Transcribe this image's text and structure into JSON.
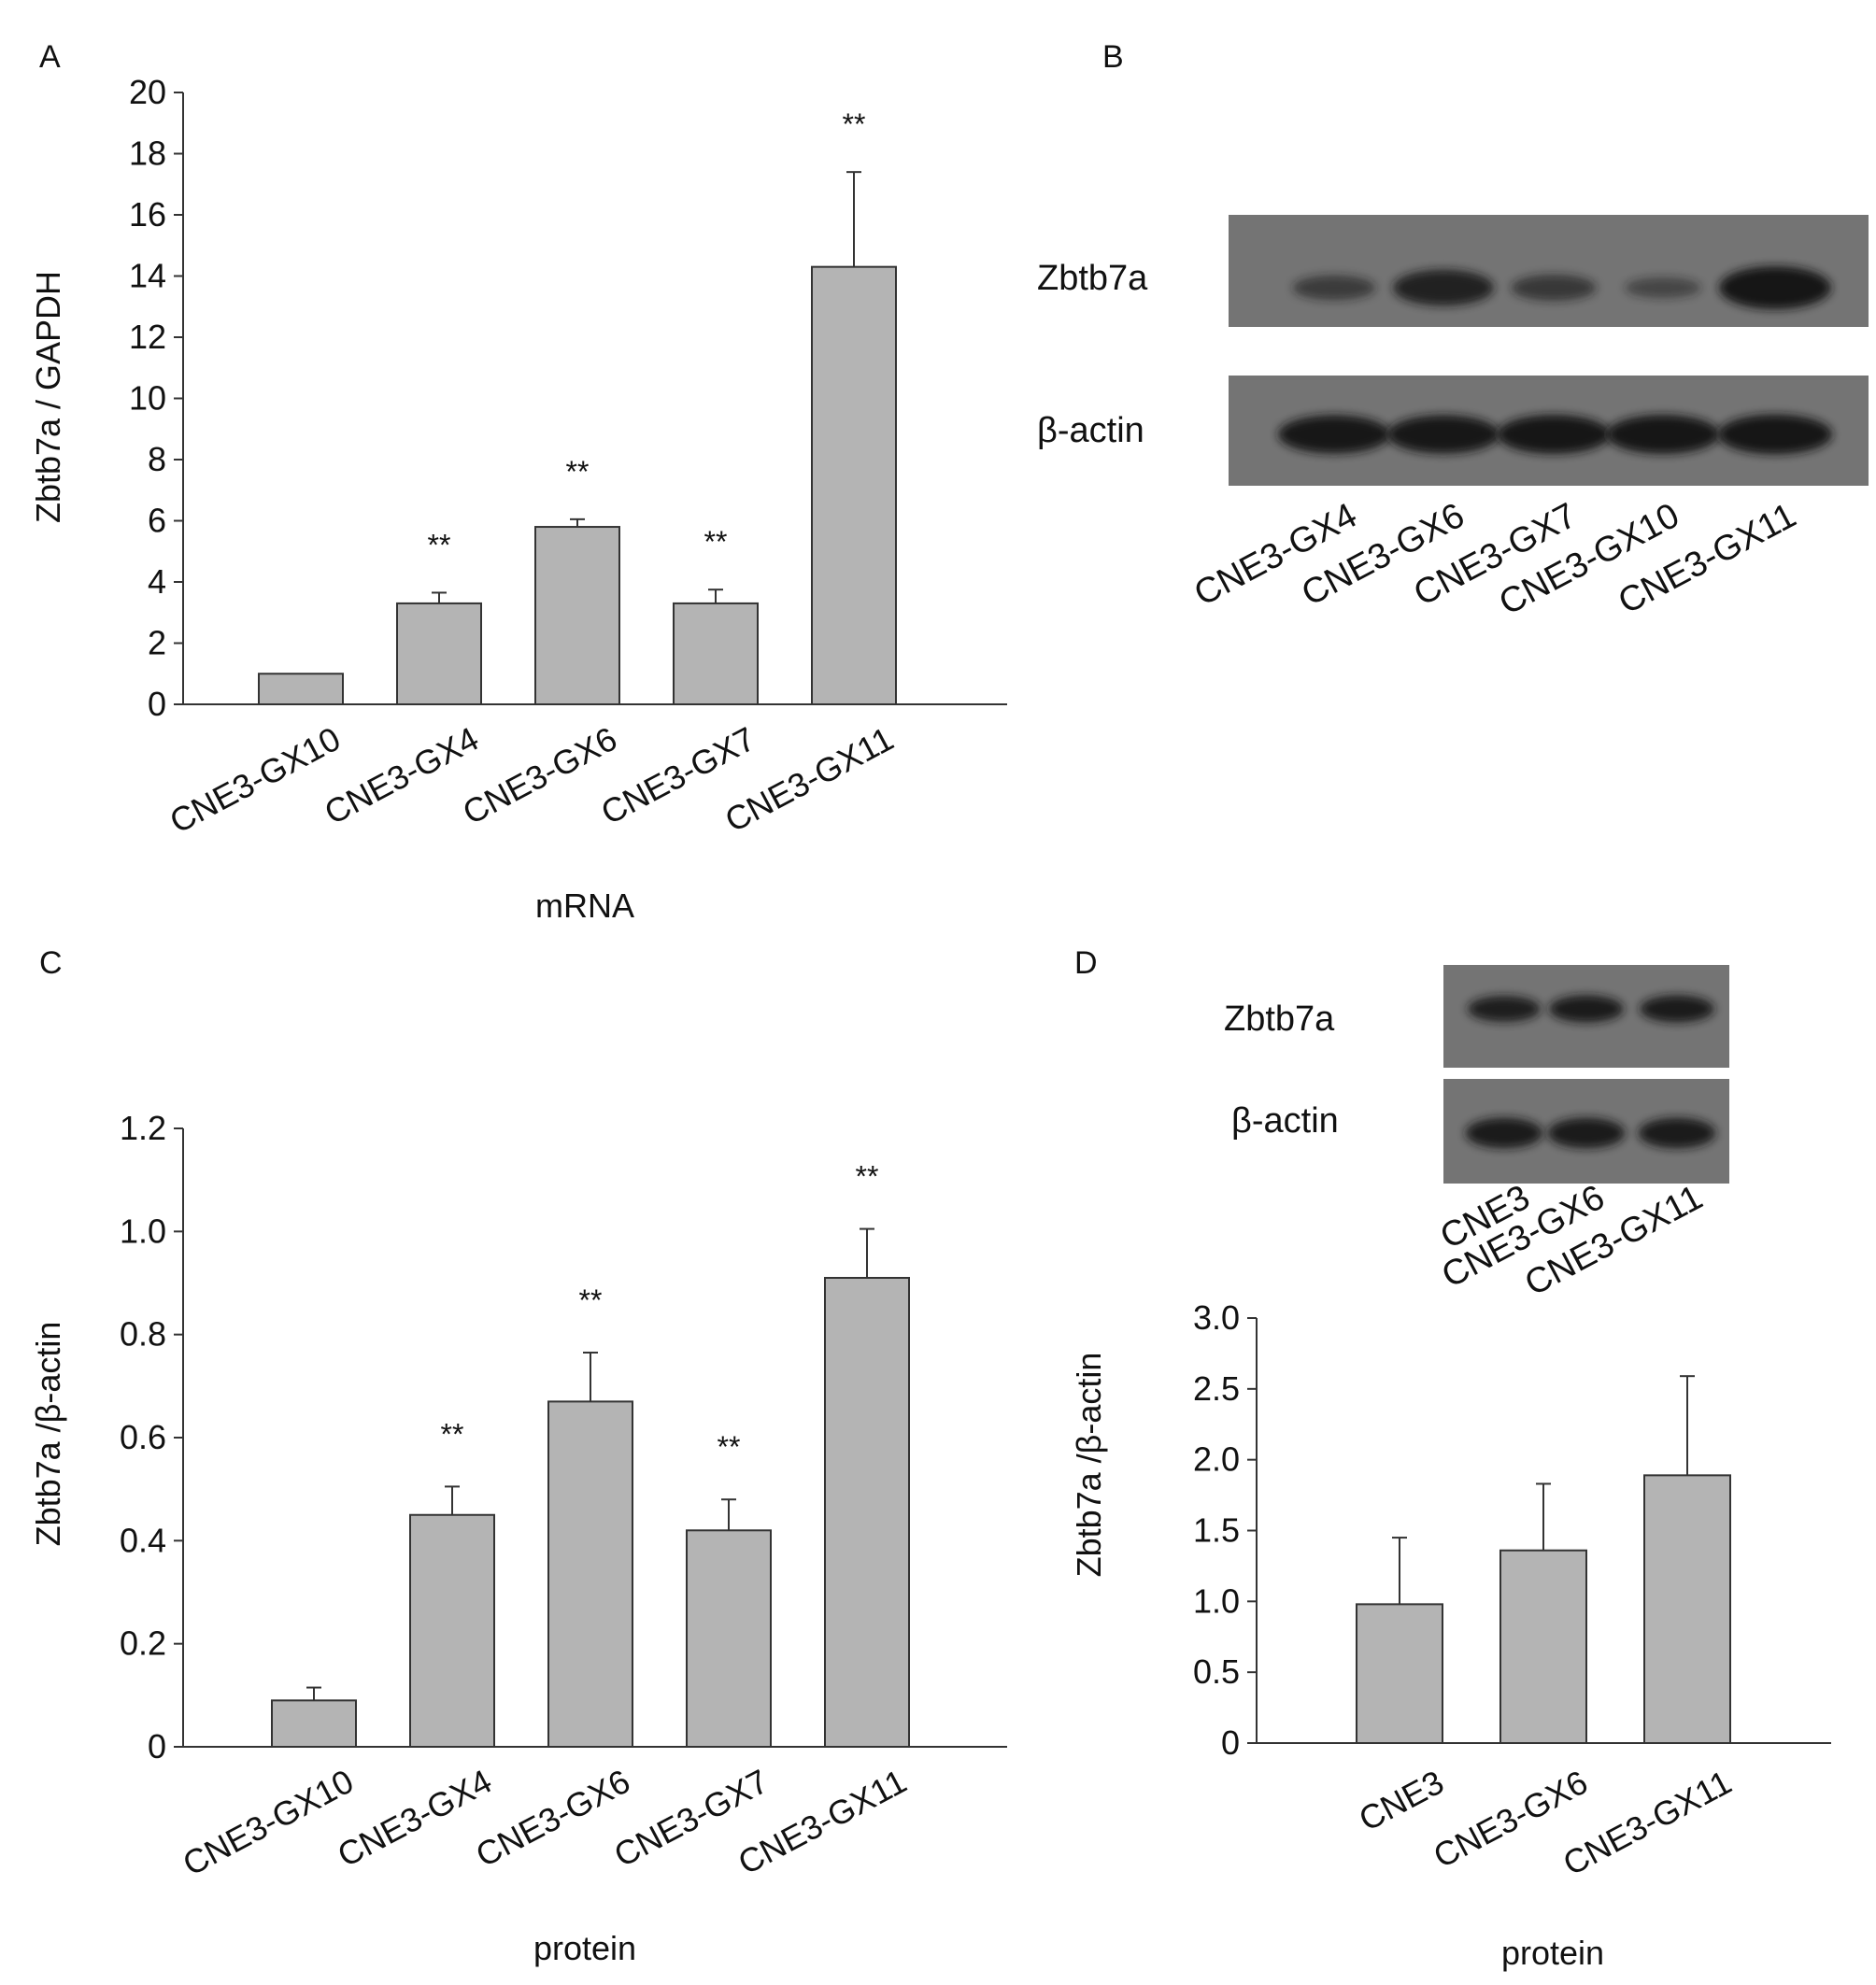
{
  "chart_data": [
    {
      "panel": "A",
      "type": "bar",
      "categories": [
        "CNE3-GX10",
        "CNE3-GX4",
        "CNE3-GX6",
        "CNE3-GX7",
        "CNE3-GX11"
      ],
      "values": [
        1.0,
        3.3,
        5.8,
        3.3,
        14.3
      ],
      "errors": [
        0,
        0.35,
        0.25,
        0.45,
        3.1
      ],
      "significance": [
        "",
        "**",
        "**",
        "**",
        "**"
      ],
      "xlabel": "mRNA",
      "ylabel": "Zbtb7a / GAPDH",
      "ylim": [
        0,
        20
      ],
      "yticks": [
        0,
        2,
        4,
        6,
        8,
        10,
        12,
        14,
        16,
        18,
        20
      ],
      "ytick_labels": [
        "0",
        "2",
        "4",
        "6",
        "8",
        "10",
        "12",
        "14",
        "16",
        "18",
        "20"
      ],
      "bar_color": "#b4b4b4"
    },
    {
      "panel": "C",
      "type": "bar",
      "categories": [
        "CNE3-GX10",
        "CNE3-GX4",
        "CNE3-GX6",
        "CNE3-GX7",
        "CNE3-GX11"
      ],
      "values": [
        0.09,
        0.45,
        0.67,
        0.42,
        0.91
      ],
      "errors": [
        0.025,
        0.055,
        0.095,
        0.06,
        0.095
      ],
      "significance": [
        "",
        "**",
        "**",
        "**",
        "**"
      ],
      "xlabel": "protein",
      "ylabel": "Zbtb7a /β-actin",
      "ylim": [
        0,
        1.2
      ],
      "yticks": [
        0,
        0.2,
        0.4,
        0.6,
        0.8,
        1.0,
        1.2
      ],
      "ytick_labels": [
        "0",
        "0.2",
        "0.4",
        "0.6",
        "0.8",
        "1.0",
        "1.2"
      ],
      "bar_color": "#b4b4b4"
    },
    {
      "panel": "D",
      "type": "bar",
      "categories": [
        "CNE3",
        "CNE3-GX6",
        "CNE3-GX11"
      ],
      "values": [
        0.98,
        1.36,
        1.89
      ],
      "errors": [
        0.47,
        0.47,
        0.7
      ],
      "significance": [
        "",
        "",
        ""
      ],
      "xlabel": "protein",
      "ylabel": "Zbtb7a /β-actin",
      "ylim": [
        0,
        3.0
      ],
      "yticks": [
        0,
        0.5,
        1.0,
        1.5,
        2.0,
        2.5,
        3.0
      ],
      "ytick_labels": [
        "0",
        "0.5",
        "1.0",
        "1.5",
        "2.0",
        "2.5",
        "3.0"
      ],
      "bar_color": "#b4b4b4"
    }
  ],
  "blots": {
    "B": {
      "panel": "B",
      "rows": [
        "Zbtb7a",
        "β-actin"
      ],
      "lanes": [
        "CNE3-GX4",
        "CNE3-GX6",
        "CNE3-GX7",
        "CNE3-GX10",
        "CNE3-GX11"
      ],
      "zbtb7a_band_intensity": [
        0.35,
        0.75,
        0.4,
        0.2,
        1.0
      ],
      "actin_band_intensity": [
        0.9,
        0.9,
        0.92,
        0.92,
        0.95
      ]
    },
    "D": {
      "rows": [
        "Zbtb7a",
        "β-actin"
      ],
      "lanes": [
        "CNE3",
        "CNE3-GX6",
        "CNE3-GX11"
      ],
      "zbtb7a_band_intensity": [
        0.8,
        0.85,
        0.85
      ],
      "actin_band_intensity": [
        0.85,
        0.85,
        0.85
      ]
    }
  },
  "colors": {
    "bar_fill": "#b4b4b4",
    "blot_background": "#747474",
    "band": "#141414"
  }
}
